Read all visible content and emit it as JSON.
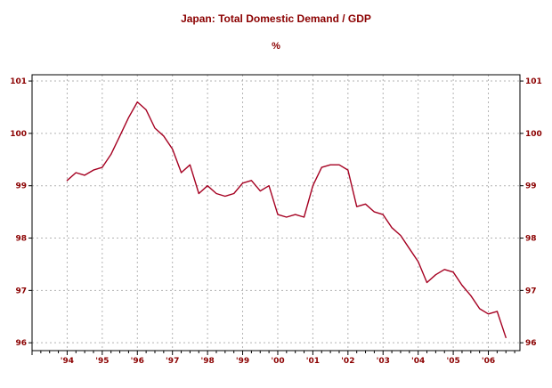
{
  "chart_data": {
    "type": "line",
    "title": "Japan: Total Domestic Demand / GDP",
    "subtitle": "%",
    "xlabel": "",
    "ylabel": "",
    "xlim": [
      1993.0,
      2006.9
    ],
    "ylim": [
      96,
      101
    ],
    "y_ticks": [
      96,
      97,
      98,
      99,
      100,
      101
    ],
    "y_axis_sides": [
      "left",
      "right"
    ],
    "x_tick_years": [
      1994,
      1995,
      1996,
      1997,
      1998,
      1999,
      2000,
      2001,
      2002,
      2003,
      2004,
      2005,
      2006
    ],
    "x_tick_labels": [
      "'94",
      "'95",
      "'96",
      "'97",
      "'98",
      "'99",
      "'00",
      "'01",
      "'02",
      "'03",
      "'04",
      "'05",
      "'06"
    ],
    "grid": "dashed",
    "legend": "none",
    "line_color": "#a50021",
    "text_color": "#8b0000",
    "grid_color": "#b3b3b3",
    "border_color": "#000000",
    "series": [
      {
        "name": "Total Domestic Demand / GDP (%)",
        "x": [
          1994,
          1994.25,
          1994.5,
          1994.75,
          1995,
          1995.25,
          1995.5,
          1995.75,
          1996,
          1996.25,
          1996.5,
          1996.75,
          1997,
          1997.25,
          1997.5,
          1997.75,
          1998,
          1998.25,
          1998.5,
          1998.75,
          1999,
          1999.25,
          1999.5,
          1999.75,
          2000,
          2000.25,
          2000.5,
          2000.75,
          2001,
          2001.25,
          2001.5,
          2001.75,
          2002,
          2002.25,
          2002.5,
          2002.75,
          2003,
          2003.25,
          2003.5,
          2003.75,
          2004,
          2004.25,
          2004.5,
          2004.75,
          2005,
          2005.25,
          2005.5,
          2005.75,
          2006,
          2006.25,
          2006.5
        ],
        "values": [
          99.1,
          99.25,
          99.2,
          99.3,
          99.35,
          99.6,
          99.95,
          100.3,
          100.6,
          100.45,
          100.1,
          99.95,
          99.7,
          99.25,
          99.4,
          98.85,
          99.0,
          98.85,
          98.8,
          98.85,
          99.05,
          99.1,
          98.9,
          99.0,
          98.45,
          98.4,
          98.45,
          98.4,
          99.0,
          99.35,
          99.4,
          99.4,
          99.3,
          98.6,
          98.65,
          98.5,
          98.45,
          98.2,
          98.05,
          97.8,
          97.55,
          97.15,
          97.3,
          97.4,
          97.35,
          97.1,
          96.9,
          96.65,
          96.55,
          96.6,
          96.1
        ]
      }
    ]
  }
}
